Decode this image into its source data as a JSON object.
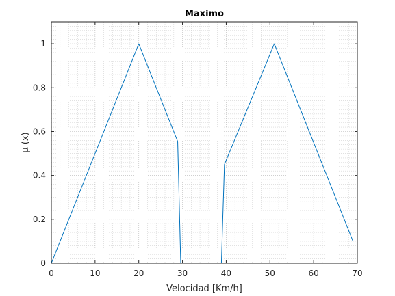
{
  "chart_data": {
    "type": "line",
    "title": "Maximo",
    "xlabel": "Velocidad [Km/h]",
    "ylabel": "μ (x)",
    "xlim": [
      0,
      70
    ],
    "ylim": [
      0,
      1.1
    ],
    "xticks": [
      0,
      10,
      20,
      30,
      40,
      50,
      60,
      70
    ],
    "yticks": [
      0,
      0.2,
      0.4,
      0.6,
      0.8,
      1
    ],
    "xtick_labels": [
      "0",
      "10",
      "20",
      "30",
      "40",
      "50",
      "60",
      "70"
    ],
    "ytick_labels": [
      "0",
      "0.2",
      "0.4",
      "0.6",
      "0.8",
      "1"
    ],
    "grid": true,
    "minor_grid": true,
    "series": [
      {
        "color": "#0072BD",
        "x": [
          0,
          20,
          28.9,
          29.6,
          38.9,
          39.6,
          51,
          69
        ],
        "y": [
          0,
          1,
          0.555,
          0,
          0,
          0.45,
          1,
          0.1
        ]
      }
    ]
  }
}
